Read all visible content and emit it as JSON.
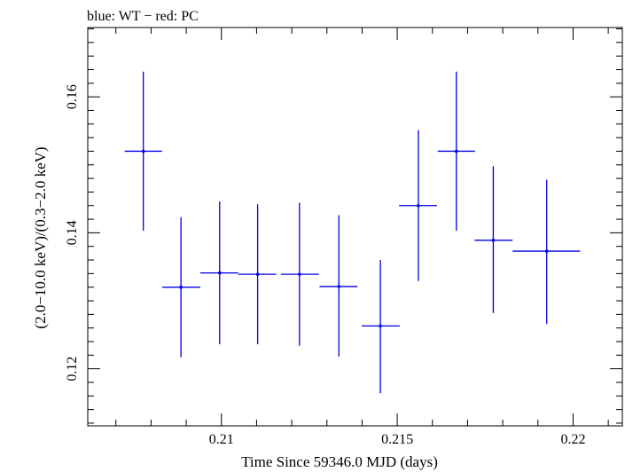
{
  "chart_data": {
    "type": "scatter",
    "title": "blue: WT − red: PC",
    "xlabel": "Time Since 59346.0 MJD (days)",
    "ylabel": "(2.0−10.0 keV)/(0.3−2.0 keV)",
    "xlim": [
      0.2062,
      0.2214
    ],
    "ylim": [
      0.1116,
      0.1702
    ],
    "x_ticks": [
      {
        "value": 0.21,
        "label": "0.21"
      },
      {
        "value": 0.215,
        "label": "0.215"
      },
      {
        "value": 0.22,
        "label": "0.22"
      }
    ],
    "y_ticks": [
      {
        "value": 0.12,
        "label": "0.12"
      },
      {
        "value": 0.14,
        "label": "0.14"
      },
      {
        "value": 0.16,
        "label": "0.16"
      }
    ],
    "x_minor_step": 0.001,
    "y_minor_step": 0.002,
    "series": [
      {
        "name": "WT",
        "color": "#0000e6",
        "points": [
          {
            "x": 0.20778,
            "xerr_lo": 0.00053,
            "xerr_hi": 0.00053,
            "y": 0.152,
            "yerr_lo": 0.0117,
            "yerr_hi": 0.0117
          },
          {
            "x": 0.20885,
            "xerr_lo": 0.00053,
            "xerr_hi": 0.00055,
            "y": 0.132,
            "yerr_lo": 0.0103,
            "yerr_hi": 0.0103
          },
          {
            "x": 0.20995,
            "xerr_lo": 0.00055,
            "xerr_hi": 0.00053,
            "y": 0.1341,
            "yerr_lo": 0.0105,
            "yerr_hi": 0.0105
          },
          {
            "x": 0.21103,
            "xerr_lo": 0.00055,
            "xerr_hi": 0.00053,
            "y": 0.1339,
            "yerr_lo": 0.0103,
            "yerr_hi": 0.0103
          },
          {
            "x": 0.21222,
            "xerr_lo": 0.00053,
            "xerr_hi": 0.00055,
            "y": 0.1339,
            "yerr_lo": 0.0105,
            "yerr_hi": 0.0105
          },
          {
            "x": 0.21334,
            "xerr_lo": 0.00055,
            "xerr_hi": 0.00053,
            "y": 0.1321,
            "yerr_lo": 0.0103,
            "yerr_hi": 0.0105
          },
          {
            "x": 0.21452,
            "xerr_lo": 0.00053,
            "xerr_hi": 0.00055,
            "y": 0.1263,
            "yerr_lo": 0.0099,
            "yerr_hi": 0.0097
          },
          {
            "x": 0.2156,
            "xerr_lo": 0.00055,
            "xerr_hi": 0.00053,
            "y": 0.144,
            "yerr_lo": 0.0111,
            "yerr_hi": 0.0111
          },
          {
            "x": 0.21668,
            "xerr_lo": 0.00053,
            "xerr_hi": 0.00053,
            "y": 0.152,
            "yerr_lo": 0.0117,
            "yerr_hi": 0.0117
          },
          {
            "x": 0.21773,
            "xerr_lo": 0.00053,
            "xerr_hi": 0.00055,
            "y": 0.1389,
            "yerr_lo": 0.0107,
            "yerr_hi": 0.0109
          },
          {
            "x": 0.21925,
            "xerr_lo": 0.00097,
            "xerr_hi": 0.00095,
            "y": 0.1373,
            "yerr_lo": 0.0107,
            "yerr_hi": 0.0105
          }
        ]
      }
    ]
  }
}
